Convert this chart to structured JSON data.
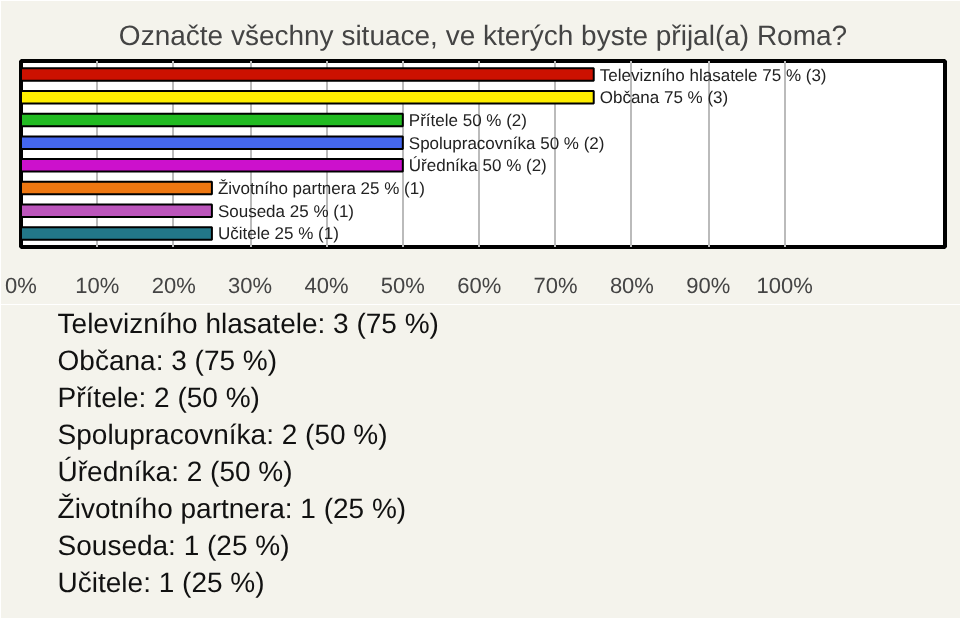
{
  "chart_data": {
    "type": "bar",
    "orientation": "horizontal",
    "title": "Označte všechny situace, ve kterých byste přijal(a) Roma?",
    "categories": [
      null,
      null,
      null,
      null,
      null,
      null,
      null,
      null
    ],
    "values": [
      75,
      75,
      50,
      50,
      50,
      25,
      25,
      25
    ],
    "colors": [
      "#cc1100",
      "#ffee00",
      "#22bb22",
      "#4466ee",
      "#cc11cc",
      "#ee7711",
      "#bb55bb",
      "#227788"
    ],
    "value_labels": [
      "Televizního hlasatele 75 % (3)",
      "Občana 75 % (3)",
      "Přítele 50 % (2)",
      "Spolupracovníka 50 % (2)",
      "Úředníka 50 % (2)",
      "Životního partnera 25 % (1)",
      "Souseda 25 % (1)",
      "Učitele 25 % (1)"
    ],
    "xlim": [
      0,
      121
    ],
    "xticks": [
      {
        "value": 0,
        "label": "0%"
      },
      {
        "value": 10,
        "label": "10%"
      },
      {
        "value": 20,
        "label": "20%"
      },
      {
        "value": 30,
        "label": "30%"
      },
      {
        "value": 40,
        "label": "40%"
      },
      {
        "value": 50,
        "label": "50%"
      },
      {
        "value": 60,
        "label": "60%"
      },
      {
        "value": 70,
        "label": "70%"
      },
      {
        "value": 80,
        "label": "80%"
      },
      {
        "value": 90,
        "label": "90%"
      },
      {
        "value": 100,
        "label": "100%"
      }
    ],
    "grid": "x",
    "tick_labels": "x",
    "annotations": [
      "Televizního hlasatele: 3 (75 %)",
      "Občana: 3 (75 %)",
      "Přítele: 2 (50 %)",
      "Spolupracovníka: 2 (50 %)",
      "Úředníka: 2 (50 %)",
      "Životního partnera: 1 (25 %)",
      "Souseda: 1 (25 %)",
      "Učitele: 1 (25 %)"
    ]
  }
}
